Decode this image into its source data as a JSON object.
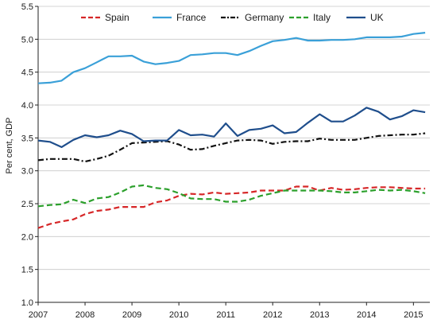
{
  "chart_data": {
    "type": "line",
    "title": "",
    "xlabel": "",
    "ylabel": "Per cent, GDP",
    "ylim": [
      1.0,
      5.5
    ],
    "xlim": [
      2007.0,
      2015.35
    ],
    "yticks": [
      "1.0",
      "1.5",
      "2.0",
      "2.5",
      "3.0",
      "3.5",
      "4.0",
      "4.5",
      "5.0",
      "5.5"
    ],
    "xticks": [
      "2007",
      "2008",
      "2009",
      "2010",
      "2011",
      "2012",
      "2013",
      "2014",
      "2015"
    ],
    "grid": "horizontal",
    "legend": "top",
    "series": [
      {
        "name": "Spain",
        "color": "#d62728",
        "dash": "dash",
        "x": [
          2007.0,
          2007.25,
          2007.5,
          2007.75,
          2008.0,
          2008.25,
          2008.5,
          2008.75,
          2009.0,
          2009.25,
          2009.5,
          2009.75,
          2010.0,
          2010.25,
          2010.5,
          2010.75,
          2011.0,
          2011.25,
          2011.5,
          2011.75,
          2012.0,
          2012.25,
          2012.5,
          2012.75,
          2013.0,
          2013.25,
          2013.5,
          2013.75,
          2014.0,
          2014.25,
          2014.5,
          2014.75,
          2015.0,
          2015.25
        ],
        "y": [
          2.13,
          2.19,
          2.23,
          2.26,
          2.34,
          2.39,
          2.41,
          2.45,
          2.45,
          2.45,
          2.52,
          2.55,
          2.62,
          2.65,
          2.64,
          2.67,
          2.65,
          2.66,
          2.67,
          2.7,
          2.7,
          2.7,
          2.76,
          2.76,
          2.7,
          2.74,
          2.71,
          2.72,
          2.74,
          2.75,
          2.75,
          2.74,
          2.73,
          2.73
        ]
      },
      {
        "name": "France",
        "color": "#3aa0d8",
        "dash": "solid",
        "x": [
          2007.0,
          2007.25,
          2007.5,
          2007.75,
          2008.0,
          2008.25,
          2008.5,
          2008.75,
          2009.0,
          2009.25,
          2009.5,
          2009.75,
          2010.0,
          2010.25,
          2010.5,
          2010.75,
          2011.0,
          2011.25,
          2011.5,
          2011.75,
          2012.0,
          2012.25,
          2012.5,
          2012.75,
          2013.0,
          2013.25,
          2013.5,
          2013.75,
          2014.0,
          2014.25,
          2014.5,
          2014.75,
          2015.0,
          2015.25
        ],
        "y": [
          4.33,
          4.34,
          4.37,
          4.5,
          4.56,
          4.65,
          4.74,
          4.74,
          4.75,
          4.66,
          4.62,
          4.64,
          4.67,
          4.76,
          4.77,
          4.79,
          4.79,
          4.76,
          4.82,
          4.9,
          4.97,
          4.99,
          5.02,
          4.98,
          4.98,
          4.99,
          4.99,
          5.0,
          5.03,
          5.03,
          5.03,
          5.04,
          5.08,
          5.1
        ]
      },
      {
        "name": "Germany",
        "color": "#111111",
        "dash": "dashdot",
        "x": [
          2007.0,
          2007.25,
          2007.5,
          2007.75,
          2008.0,
          2008.25,
          2008.5,
          2008.75,
          2009.0,
          2009.25,
          2009.5,
          2009.75,
          2010.0,
          2010.25,
          2010.5,
          2010.75,
          2011.0,
          2011.25,
          2011.5,
          2011.75,
          2012.0,
          2012.25,
          2012.5,
          2012.75,
          2013.0,
          2013.25,
          2013.5,
          2013.75,
          2014.0,
          2014.25,
          2014.5,
          2014.75,
          2015.0,
          2015.25
        ],
        "y": [
          3.16,
          3.18,
          3.18,
          3.18,
          3.14,
          3.18,
          3.23,
          3.32,
          3.42,
          3.43,
          3.44,
          3.45,
          3.4,
          3.32,
          3.33,
          3.38,
          3.42,
          3.46,
          3.47,
          3.46,
          3.41,
          3.44,
          3.45,
          3.45,
          3.49,
          3.47,
          3.47,
          3.47,
          3.5,
          3.53,
          3.54,
          3.55,
          3.55,
          3.57
        ]
      },
      {
        "name": "Italy",
        "color": "#2ca02c",
        "dash": "dash",
        "x": [
          2007.0,
          2007.25,
          2007.5,
          2007.75,
          2008.0,
          2008.25,
          2008.5,
          2008.75,
          2009.0,
          2009.25,
          2009.5,
          2009.75,
          2010.0,
          2010.25,
          2010.5,
          2010.75,
          2011.0,
          2011.25,
          2011.5,
          2011.75,
          2012.0,
          2012.25,
          2012.5,
          2012.75,
          2013.0,
          2013.25,
          2013.5,
          2013.75,
          2014.0,
          2014.25,
          2014.5,
          2014.75,
          2015.0,
          2015.25
        ],
        "y": [
          2.46,
          2.48,
          2.49,
          2.56,
          2.51,
          2.58,
          2.6,
          2.67,
          2.76,
          2.78,
          2.74,
          2.72,
          2.66,
          2.58,
          2.57,
          2.57,
          2.53,
          2.53,
          2.56,
          2.62,
          2.66,
          2.7,
          2.7,
          2.7,
          2.7,
          2.69,
          2.67,
          2.67,
          2.69,
          2.71,
          2.7,
          2.71,
          2.69,
          2.66
        ]
      },
      {
        "name": "UK",
        "color": "#1f4e8c",
        "dash": "solid",
        "x": [
          2007.0,
          2007.25,
          2007.5,
          2007.75,
          2008.0,
          2008.25,
          2008.5,
          2008.75,
          2009.0,
          2009.25,
          2009.5,
          2009.75,
          2010.0,
          2010.25,
          2010.5,
          2010.75,
          2011.0,
          2011.25,
          2011.5,
          2011.75,
          2012.0,
          2012.25,
          2012.5,
          2012.75,
          2013.0,
          2013.25,
          2013.5,
          2013.75,
          2014.0,
          2014.25,
          2014.5,
          2014.75,
          2015.0,
          2015.25
        ],
        "y": [
          3.46,
          3.44,
          3.36,
          3.47,
          3.54,
          3.51,
          3.54,
          3.61,
          3.56,
          3.45,
          3.46,
          3.46,
          3.62,
          3.54,
          3.55,
          3.52,
          3.72,
          3.53,
          3.62,
          3.64,
          3.69,
          3.57,
          3.59,
          3.73,
          3.86,
          3.75,
          3.75,
          3.84,
          3.96,
          3.9,
          3.78,
          3.83,
          3.92,
          3.89
        ]
      }
    ]
  }
}
